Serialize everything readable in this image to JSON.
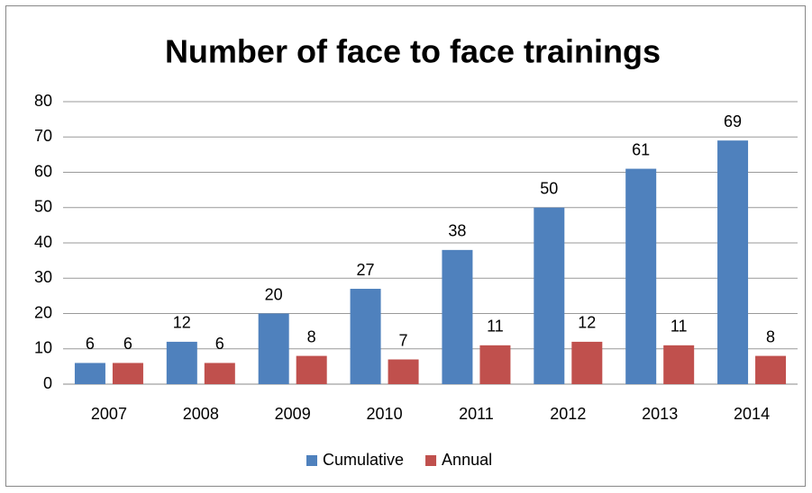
{
  "chart_data": {
    "type": "bar",
    "title": "Number of face to face trainings",
    "categories": [
      "2007",
      "2008",
      "2009",
      "2010",
      "2011",
      "2012",
      "2013",
      "2014"
    ],
    "series": [
      {
        "name": "Cumulative",
        "color": "#4f81bd",
        "values": [
          6,
          12,
          20,
          27,
          38,
          50,
          61,
          69
        ]
      },
      {
        "name": "Annual",
        "color": "#c0504d",
        "values": [
          6,
          6,
          8,
          7,
          11,
          12,
          11,
          8
        ]
      }
    ],
    "ylim": [
      0,
      80
    ],
    "yticks": [
      0,
      10,
      20,
      30,
      40,
      50,
      60,
      70,
      80
    ],
    "grid": true,
    "legend": "bottom"
  }
}
